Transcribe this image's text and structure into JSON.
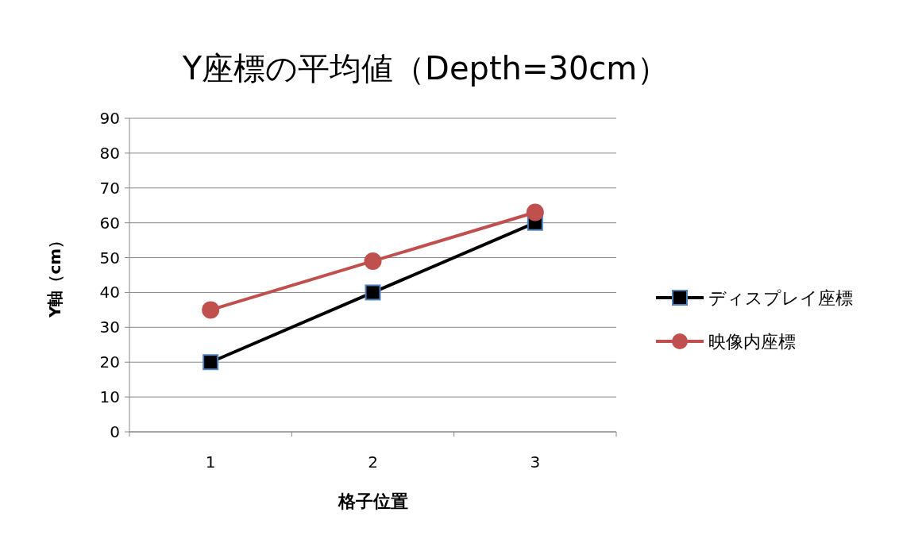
{
  "chart_data": {
    "type": "line",
    "title": "Y座標の平均値（Depth=30cm）",
    "xlabel": "格子位置",
    "ylabel": "Y軸（cm）",
    "categories": [
      "1",
      "2",
      "3"
    ],
    "ylim": [
      0,
      90
    ],
    "yticks": [
      0,
      10,
      20,
      30,
      40,
      50,
      60,
      70,
      80,
      90
    ],
    "grid": "y",
    "legend": "right",
    "line_style": "solid",
    "series": [
      {
        "name": "ディスプレイ座標",
        "color": "#000000",
        "marker": "square",
        "values": [
          20,
          40,
          60
        ]
      },
      {
        "name": "映像内座標",
        "color": "#c0504d",
        "marker": "circle",
        "values": [
          35,
          49,
          63
        ]
      }
    ]
  }
}
